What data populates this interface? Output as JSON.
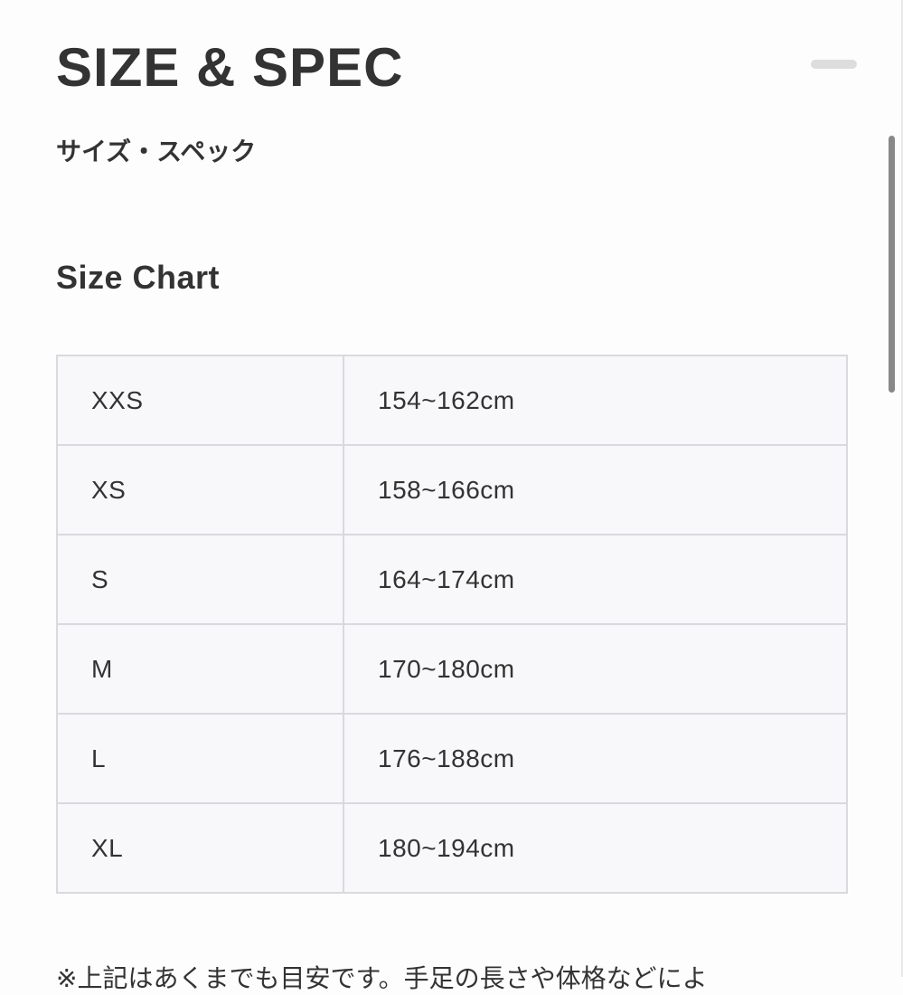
{
  "header": {
    "title": "SIZE & SPEC",
    "subtitle": "サイズ・スペック",
    "collapse_icon": "minus-icon"
  },
  "section": {
    "heading": "Size Chart"
  },
  "size_chart": {
    "rows": [
      {
        "size": "XXS",
        "height": "154~162cm"
      },
      {
        "size": "XS",
        "height": "158~166cm"
      },
      {
        "size": "S",
        "height": "164~174cm"
      },
      {
        "size": "M",
        "height": "170~180cm"
      },
      {
        "size": "L",
        "height": "176~188cm"
      },
      {
        "size": "XL",
        "height": "180~194cm"
      }
    ]
  },
  "note": "※上記はあくまでも目安です。手足の長さや体格などによ"
}
